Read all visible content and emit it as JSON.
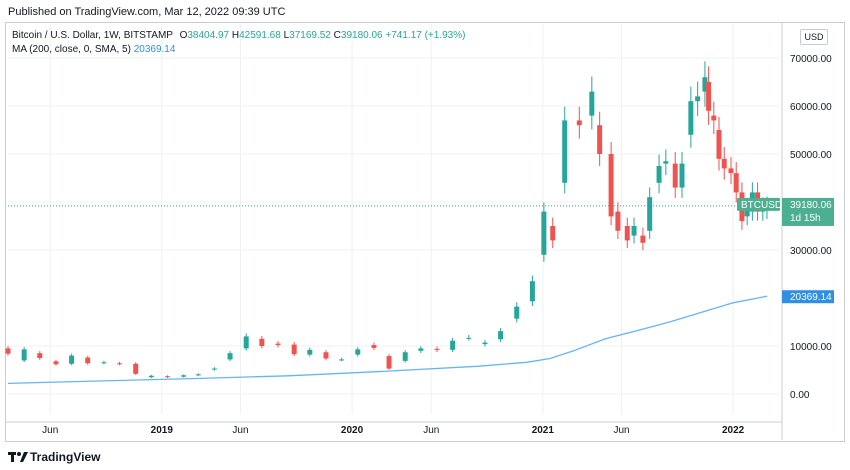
{
  "header": {
    "published": "Published on TradingView.com, Mar 12, 2022 09:39 UTC"
  },
  "legend": {
    "symbol": "Bitcoin / U.S. Dollar, 1W, BITSTAMP",
    "o_label": "O",
    "o_value": "38404.97",
    "h_label": "H",
    "h_value": "42591.68",
    "l_label": "L",
    "l_value": "37169.52",
    "c_label": "C",
    "c_value": "39180.06",
    "change": "+741.17 (+1.93%)",
    "ma_label": "MA (200, close, 0, SMA, 5)",
    "ma_value": "20369.14"
  },
  "currency_button": "USD",
  "price_tag": {
    "symbol": "BTCUSD",
    "price": "39180.06",
    "countdown": "1d 15h"
  },
  "ma_tag": "20369.14",
  "footer": {
    "brand": "TradingView",
    "logo_icon": "tradingview-logo-icon"
  },
  "colors": {
    "up": "#26a69a",
    "down": "#ef5350",
    "ma_line": "#64b5f6",
    "price_tag_bg": "#4caf91",
    "ma_tag_bg": "#2f8fe0",
    "grid": "#eef0f3"
  },
  "chart_data": {
    "type": "candlestick",
    "yticks": [
      "70000.00",
      "60000.00",
      "50000.00",
      "40000.00",
      "30000.00",
      "10000.00",
      "0.00"
    ],
    "ytick_values": [
      70000,
      60000,
      50000,
      40000,
      30000,
      10000,
      0
    ],
    "ylim": [
      -5000,
      72000
    ],
    "xlim": [
      "2018-03-12",
      "2022-04-01"
    ],
    "xticks": [
      {
        "label": "Jun",
        "date": "2018-06-01",
        "bold": false
      },
      {
        "label": "2019",
        "date": "2019-01-01",
        "bold": true
      },
      {
        "label": "Jun",
        "date": "2019-06-01",
        "bold": false
      },
      {
        "label": "2020",
        "date": "2020-01-01",
        "bold": true
      },
      {
        "label": "Jun",
        "date": "2020-06-01",
        "bold": false
      },
      {
        "label": "2021",
        "date": "2021-01-01",
        "bold": true
      },
      {
        "label": "Jun",
        "date": "2021-06-01",
        "bold": false
      },
      {
        "label": "2022",
        "date": "2022-01-01",
        "bold": true
      }
    ],
    "last_price": 39180.06,
    "ma_value": 20369.14,
    "candles": [
      {
        "d": "2018-03-12",
        "o": 9500,
        "c": 8400
      },
      {
        "d": "2018-04-12",
        "o": 7000,
        "c": 9300
      },
      {
        "d": "2018-05-12",
        "o": 8500,
        "c": 7500
      },
      {
        "d": "2018-06-12",
        "o": 6800,
        "c": 6200
      },
      {
        "d": "2018-07-12",
        "o": 6300,
        "c": 8000
      },
      {
        "d": "2018-08-12",
        "o": 7600,
        "c": 6400
      },
      {
        "d": "2018-09-12",
        "o": 6500,
        "c": 6600
      },
      {
        "d": "2018-10-12",
        "o": 6400,
        "c": 6300
      },
      {
        "d": "2018-11-12",
        "o": 6300,
        "c": 4200
      },
      {
        "d": "2018-12-12",
        "o": 3500,
        "c": 3800
      },
      {
        "d": "2019-01-12",
        "o": 3700,
        "c": 3500
      },
      {
        "d": "2019-02-12",
        "o": 3600,
        "c": 3900
      },
      {
        "d": "2019-03-12",
        "o": 3900,
        "c": 4100
      },
      {
        "d": "2019-04-12",
        "o": 5100,
        "c": 5300
      },
      {
        "d": "2019-05-12",
        "o": 7200,
        "c": 8500
      },
      {
        "d": "2019-06-12",
        "o": 9500,
        "c": 12000
      },
      {
        "d": "2019-07-12",
        "o": 11500,
        "c": 10000
      },
      {
        "d": "2019-08-12",
        "o": 10500,
        "c": 10200
      },
      {
        "d": "2019-09-12",
        "o": 10300,
        "c": 8300
      },
      {
        "d": "2019-10-12",
        "o": 8200,
        "c": 9200
      },
      {
        "d": "2019-11-12",
        "o": 8700,
        "c": 7400
      },
      {
        "d": "2019-12-12",
        "o": 7200,
        "c": 7200
      },
      {
        "d": "2020-01-12",
        "o": 8200,
        "c": 9300
      },
      {
        "d": "2020-02-12",
        "o": 10200,
        "c": 9600
      },
      {
        "d": "2020-03-12",
        "o": 7900,
        "c": 5300
      },
      {
        "d": "2020-04-12",
        "o": 6900,
        "c": 8700
      },
      {
        "d": "2020-05-12",
        "o": 9000,
        "c": 9500
      },
      {
        "d": "2020-06-12",
        "o": 9400,
        "c": 9200
      },
      {
        "d": "2020-07-12",
        "o": 9200,
        "c": 11100
      },
      {
        "d": "2020-08-12",
        "o": 11700,
        "c": 11700
      },
      {
        "d": "2020-09-12",
        "o": 10400,
        "c": 10700
      },
      {
        "d": "2020-10-12",
        "o": 11400,
        "c": 13100
      },
      {
        "d": "2020-11-12",
        "o": 15700,
        "c": 18200
      },
      {
        "d": "2020-12-12",
        "o": 19300,
        "c": 23500
      },
      {
        "d": "2021-01-03",
        "o": 29000,
        "c": 38000
      },
      {
        "d": "2021-01-20",
        "o": 35000,
        "c": 32000
      },
      {
        "d": "2021-02-12",
        "o": 44000,
        "c": 57000
      },
      {
        "d": "2021-03-12",
        "o": 57000,
        "c": 56000
      },
      {
        "d": "2021-04-05",
        "o": 58000,
        "c": 63000
      },
      {
        "d": "2021-04-20",
        "o": 56000,
        "c": 50000
      },
      {
        "d": "2021-05-12",
        "o": 50000,
        "c": 37000
      },
      {
        "d": "2021-05-25",
        "o": 38000,
        "c": 34000
      },
      {
        "d": "2021-06-12",
        "o": 35000,
        "c": 32000
      },
      {
        "d": "2021-06-25",
        "o": 33000,
        "c": 35000
      },
      {
        "d": "2021-07-12",
        "o": 33000,
        "c": 31500
      },
      {
        "d": "2021-07-25",
        "o": 34000,
        "c": 41000
      },
      {
        "d": "2021-08-12",
        "o": 44000,
        "c": 47500
      },
      {
        "d": "2021-08-25",
        "o": 48000,
        "c": 48500
      },
      {
        "d": "2021-09-12",
        "o": 48000,
        "c": 43000
      },
      {
        "d": "2021-09-25",
        "o": 43000,
        "c": 48000
      },
      {
        "d": "2021-10-12",
        "o": 54000,
        "c": 61000
      },
      {
        "d": "2021-10-25",
        "o": 61000,
        "c": 62000
      },
      {
        "d": "2021-11-08",
        "o": 63000,
        "c": 66000
      },
      {
        "d": "2021-11-15",
        "o": 65000,
        "c": 59000
      },
      {
        "d": "2021-11-25",
        "o": 58000,
        "c": 57000
      },
      {
        "d": "2021-12-05",
        "o": 55000,
        "c": 49000
      },
      {
        "d": "2021-12-15",
        "o": 49000,
        "c": 47000
      },
      {
        "d": "2021-12-28",
        "o": 47000,
        "c": 46000
      },
      {
        "d": "2022-01-07",
        "o": 46000,
        "c": 42000
      },
      {
        "d": "2022-01-18",
        "o": 42000,
        "c": 36000
      },
      {
        "d": "2022-01-28",
        "o": 37000,
        "c": 38500
      },
      {
        "d": "2022-02-07",
        "o": 38000,
        "c": 42000
      },
      {
        "d": "2022-02-17",
        "o": 42000,
        "c": 38000
      },
      {
        "d": "2022-02-27",
        "o": 38000,
        "c": 39000
      },
      {
        "d": "2022-03-07",
        "o": 38400,
        "c": 39180
      }
    ],
    "ma_points": [
      {
        "d": "2018-03-12",
        "v": 2200
      },
      {
        "d": "2018-09-01",
        "v": 2700
      },
      {
        "d": "2019-03-01",
        "v": 3200
      },
      {
        "d": "2019-09-01",
        "v": 3800
      },
      {
        "d": "2020-03-01",
        "v": 4700
      },
      {
        "d": "2020-09-01",
        "v": 5800
      },
      {
        "d": "2020-12-01",
        "v": 6600
      },
      {
        "d": "2021-01-15",
        "v": 7400
      },
      {
        "d": "2021-03-01",
        "v": 9000
      },
      {
        "d": "2021-05-01",
        "v": 11500
      },
      {
        "d": "2021-07-01",
        "v": 13200
      },
      {
        "d": "2021-09-01",
        "v": 15000
      },
      {
        "d": "2021-11-01",
        "v": 17000
      },
      {
        "d": "2022-01-01",
        "v": 19000
      },
      {
        "d": "2022-03-07",
        "v": 20369
      }
    ]
  }
}
